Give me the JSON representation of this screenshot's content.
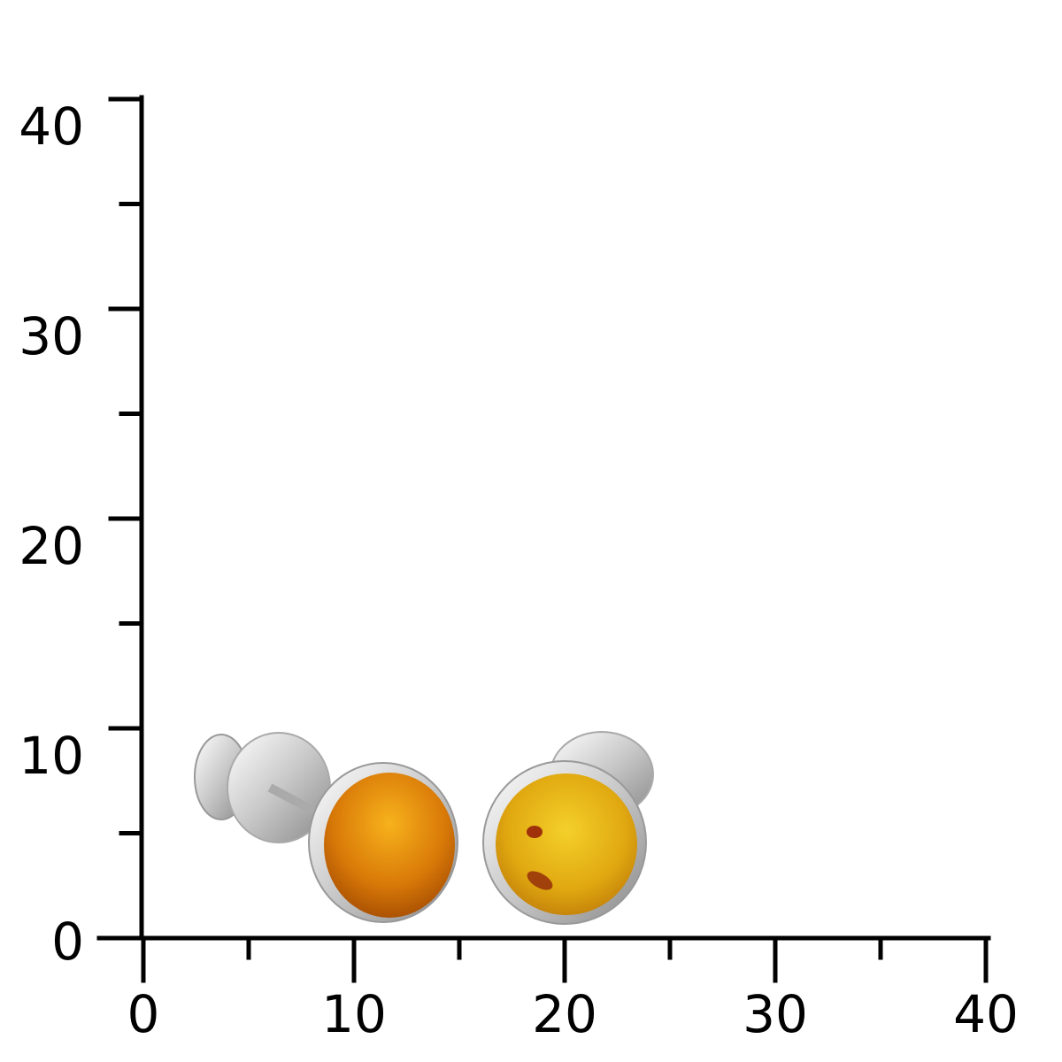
{
  "scale": {
    "x_labels": [
      0,
      10,
      20,
      30,
      40
    ],
    "y_labels": [
      0,
      10,
      20,
      30,
      40
    ]
  }
}
